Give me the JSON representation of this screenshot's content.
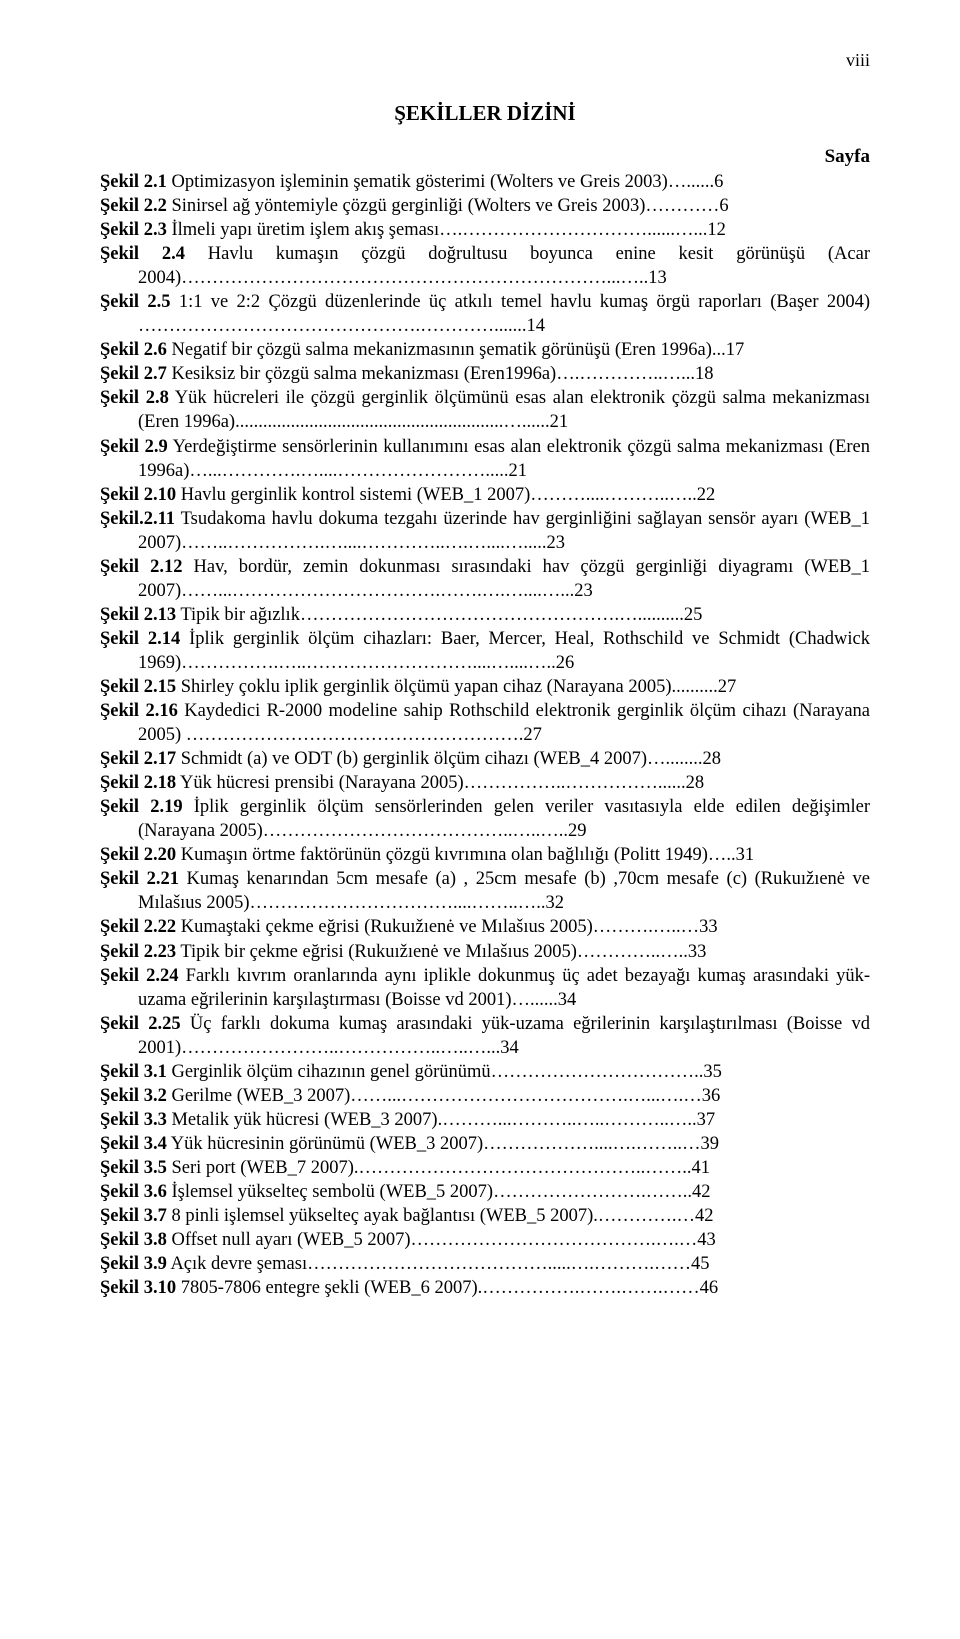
{
  "page_number_top": "viii",
  "title": "ŞEKİLLER DİZİNİ",
  "sayfa_label": "Sayfa",
  "entries": [
    {
      "label": "Şekil 2.1",
      "text": "Optimizasyon işleminin şematik gösterimi (Wolters ve Greis 2003)…......6"
    },
    {
      "label": "Şekil 2.2",
      "text": "Sinirsel ağ yöntemiyle çözgü gerginliği (Wolters ve Greis 2003)…………6"
    },
    {
      "label": "Şekil 2.3",
      "text": "İlmeli yapı üretim işlem akış şeması….…………………………......…...12"
    },
    {
      "label": "Şekil 2.4",
      "text": "Havlu kumaşın çözgü doğrultusu boyunca enine kesit görünüşü (Acar 2004)……………………………………………………………...…..13"
    },
    {
      "label": "Şekil 2.5",
      "text": "1:1 ve 2:2 Çözgü düzenlerinde üç atkılı temel havlu kumaş örgü raporları (Başer 2004) ……………………………………….………….......14"
    },
    {
      "label": "Şekil 2.6",
      "text": "Negatif bir çözgü salma mekanizmasının şematik görünüşü (Eren 1996a)...17"
    },
    {
      "label": "Şekil 2.7",
      "text": "Kesiksiz bir çözgü salma mekanizması (Eren1996a)….…………..…...18"
    },
    {
      "label": "Şekil 2.8",
      "text": "Yük hücreleri ile çözgü gerginlik ölçümünü esas alan elektronik çözgü salma mekanizması (Eren 1996a)..........................................................…......21"
    },
    {
      "label": "Şekil 2.9",
      "text": "Yerdeğiştirme sensörlerinin kullanımını esas alan elektronik çözgü salma mekanizması (Eren 1996a)…...………….…....…………………….....21"
    },
    {
      "label": "Şekil 2.10",
      "text": "Havlu gerginlik kontrol sistemi (WEB_1 2007)………....………..…..22"
    },
    {
      "label": "Şekil.2.11",
      "text": "Tsudakoma havlu dokuma tezgahı üzerinde hav gerginliğini sağlayan sensör ayarı (WEB_1 2007)……..…………….…....…………..….…....….....23"
    },
    {
      "label": "Şekil 2.12",
      "text": "Hav, bordür, zemin dokunması sırasındaki hav çözgü gerginliği diyagramı (WEB_1 2007)……...…………………………….…….….…....…...23"
    },
    {
      "label": "Şekil 2.13",
      "text": "Tipik bir ağızlık…………………………………………….…..........25"
    },
    {
      "label": "Şekil 2.14",
      "text": "İplik gerginlik ölçüm cihazları: Baer, Mercer, Heal, Rothschild ve Schmidt (Chadwick 1969)…………….…..………………………....…....…..26"
    },
    {
      "label": "Şekil 2.15",
      "text": "Shirley çoklu iplik gerginlik ölçümü yapan cihaz (Narayana 2005)..........27"
    },
    {
      "label": "Şekil 2.16",
      "text": "Kaydedici R-2000 modeline sahip Rothschild elektronik gerginlik ölçüm cihazı (Narayana 2005) ……………………………………………….27"
    },
    {
      "label": "Şekil 2.17",
      "text": "Schmidt (a) ve ODT (b) gerginlik ölçüm cihazı (WEB_4 2007)…........28"
    },
    {
      "label": "Şekil 2.18",
      "text": "Yük hücresi prensibi (Narayana 2005)……………..……………......28"
    },
    {
      "label": "Şekil 2.19",
      "text": "İplik gerginlik ölçüm sensörlerinden gelen veriler vasıtasıyla elde edilen değişimler (Narayana 2005)…………………………………..…..…..29"
    },
    {
      "label": "Şekil 2.20",
      "text": "Kumaşın örtme faktörünün çözgü kıvrımına olan bağlılığı (Politt 1949)…..31"
    },
    {
      "label": "Şekil 2.21",
      "text": "Kumaş kenarından 5cm mesafe (a) , 25cm mesafe (b) ,70cm mesafe (c) (Rukuıžıenė ve Mılašıus 2005)……………………………....……..…..32"
    },
    {
      "label": "Şekil 2.22",
      "text": "Kumaştaki çekme eğrisi (Rukuıžıenė ve Mılašıus 2005)……….…..…33"
    },
    {
      "label": "Şekil 2.23",
      "text": "Tipik bir çekme eğrisi (Rukuıžıenė ve Mılašıus 2005)…………..…..33"
    },
    {
      "label": "Şekil 2.24",
      "text": "Farklı kıvrım oranlarında aynı iplikle dokunmuş üç adet bezayağı kumaş arasındaki yük-uzama eğrilerinin karşılaştırması (Boisse vd 2001)…......34"
    },
    {
      "label": "Şekil 2.25",
      "text": "Üç farklı dokuma kumaş arasındaki yük-uzama eğrilerinin karşılaştırılması (Boisse vd 2001)……………………..……………..…..…...34"
    },
    {
      "label": "Şekil 3.1",
      "text": "Gerginlik ölçüm cihazının genel görünümü……………………………..35"
    },
    {
      "label": "Şekil 3.2",
      "text": "Gerilme (WEB_3 2007)……...……………………………….…...….…36"
    },
    {
      "label": "Şekil 3.3",
      "text": "Metalik yük hücresi (WEB_3 2007).………...………..…..………..…..37"
    },
    {
      "label": "Şekil 3.4",
      "text": "Yük hücresinin görünümü (WEB_3 2007)………………....….……..…39"
    },
    {
      "label": "Şekil 3.5",
      "text": "Seri port (WEB_7 2007).………………………………………..……..41"
    },
    {
      "label": "Şekil 3.6",
      "text": "İşlemsel yükselteç sembolü (WEB_5 2007)…………………….……..42"
    },
    {
      "label": "Şekil 3.7",
      "text": "8 pinli işlemsel yükselteç ayak bağlantısı (WEB_5 2007).………….…42"
    },
    {
      "label": "Şekil 3.8",
      "text": "Offset null ayarı (WEB_5 2007)………………………………….….…43"
    },
    {
      "label": "Şekil 3.9",
      "text": "Açık devre şeması………………………………….....….……….……45"
    },
    {
      "label": "Şekil 3.10",
      "text": "7805-7806 entegre şekli (WEB_6 2007).…………….…….…….……46"
    }
  ]
}
